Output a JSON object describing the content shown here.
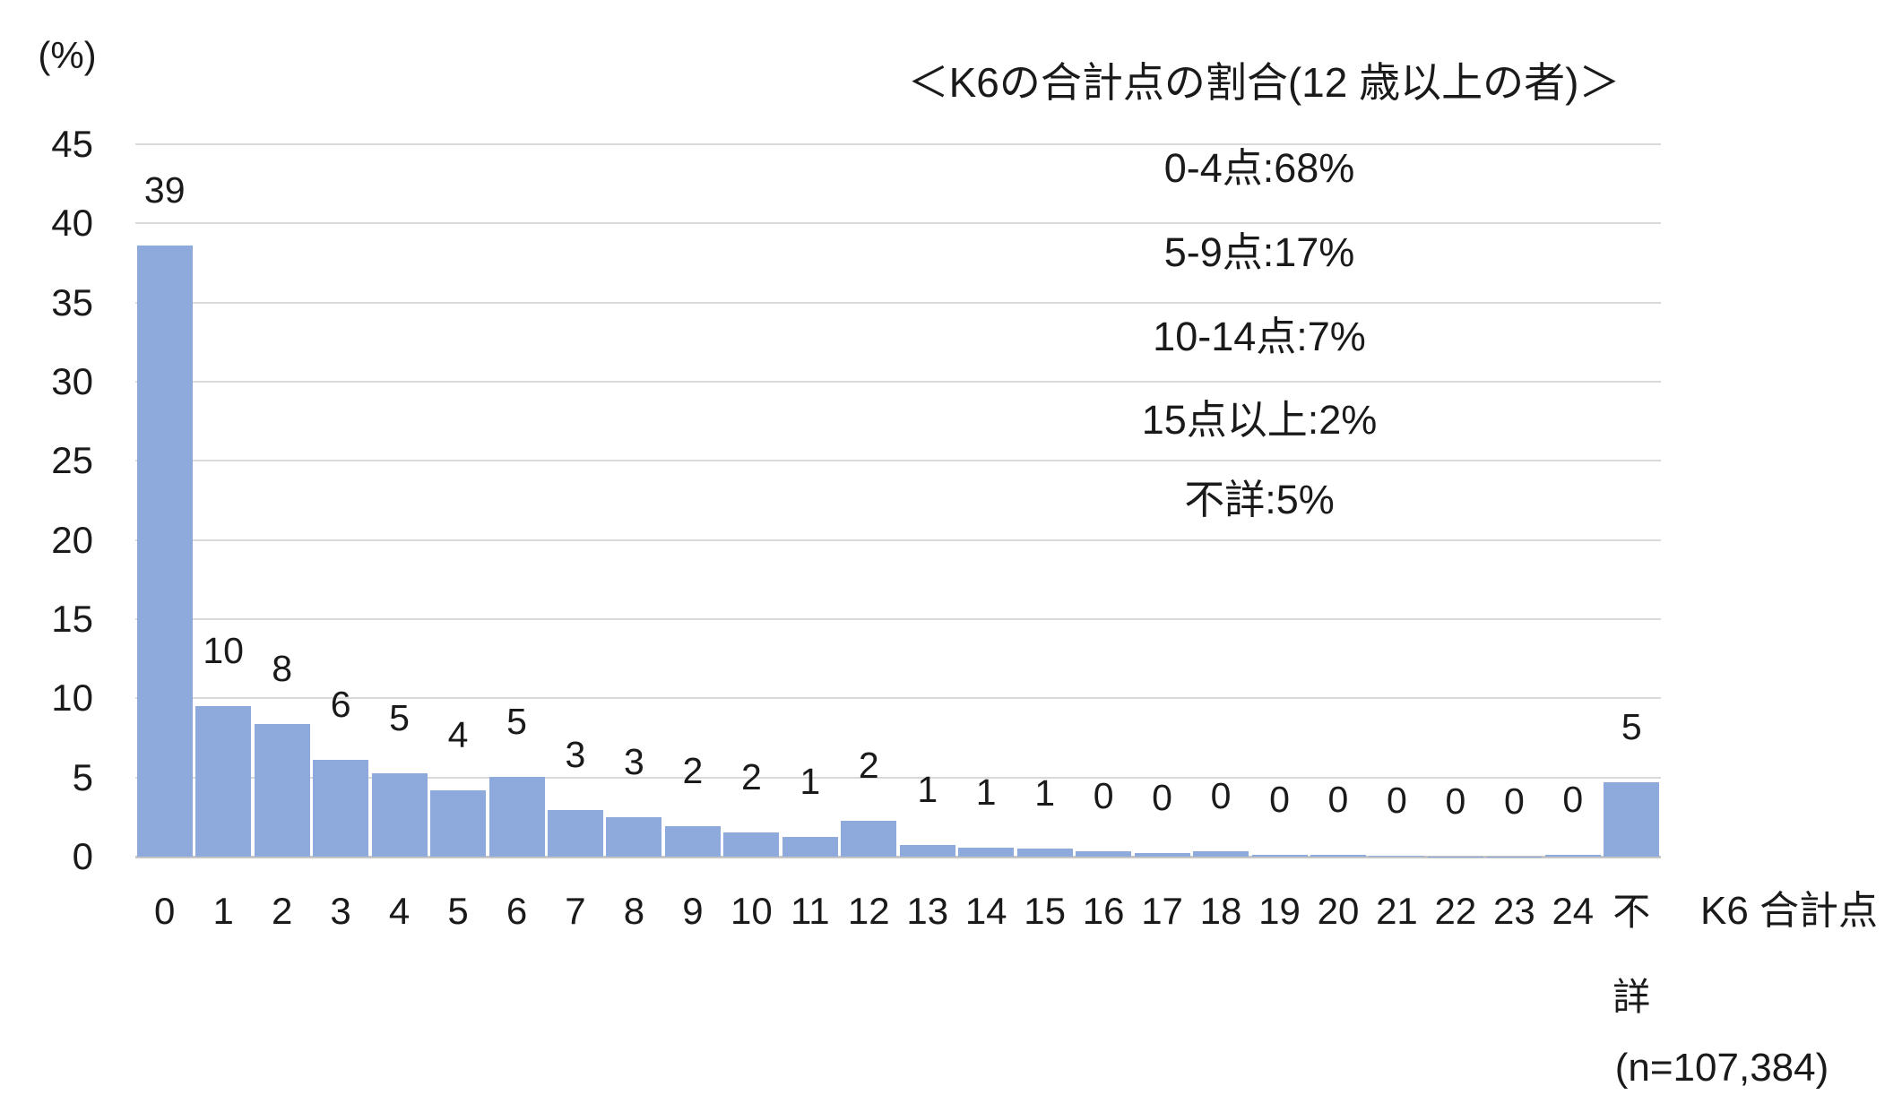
{
  "chart": {
    "unit_label": "(%)",
    "title": "＜K6の合計点の割合(12 歳以上の者)＞",
    "x_axis_title": "K6 合計点",
    "sample_note": "(n=107,384)",
    "colors": {
      "bar": "#8EA9DB",
      "gridline": "#D9D9D9",
      "baseline": "#C6C6C6",
      "text": "#1A1A1A"
    }
  },
  "chart_data": {
    "type": "bar",
    "title": "＜K6の合計点の割合(12 歳以上の者)＞",
    "xlabel": "K6 合計点",
    "ylabel": "(%)",
    "sample_size": "n=107,384",
    "categories": [
      "0",
      "1",
      "2",
      "3",
      "4",
      "5",
      "6",
      "7",
      "8",
      "9",
      "10",
      "11",
      "12",
      "13",
      "14",
      "15",
      "16",
      "17",
      "18",
      "19",
      "20",
      "21",
      "22",
      "23",
      "24",
      "不詳"
    ],
    "values": [
      38.6,
      9.5,
      8.4,
      6.1,
      5.25,
      4.2,
      5.05,
      2.95,
      2.5,
      1.95,
      1.55,
      1.25,
      2.25,
      0.75,
      0.55,
      0.5,
      0.35,
      0.25,
      0.33,
      0.12,
      0.12,
      0.06,
      0.02,
      0.02,
      0.1,
      4.7
    ],
    "bar_labels": [
      "39",
      "10",
      "8",
      "6",
      "5",
      "4",
      "5",
      "3",
      "3",
      "2",
      "2",
      "1",
      "2",
      "1",
      "1",
      "1",
      "0",
      "0",
      "0",
      "0",
      "0",
      "0",
      "0",
      "0",
      "0",
      "5"
    ],
    "ylim": [
      0,
      45
    ],
    "yticks": [
      0,
      5,
      10,
      15,
      20,
      25,
      30,
      35,
      40,
      45
    ],
    "grid": true,
    "legend": false,
    "annotations": [
      "0-4点:68%",
      "5-9点:17%",
      "10-14点:7%",
      "15点以上:2%",
      "不詳:5%"
    ]
  }
}
